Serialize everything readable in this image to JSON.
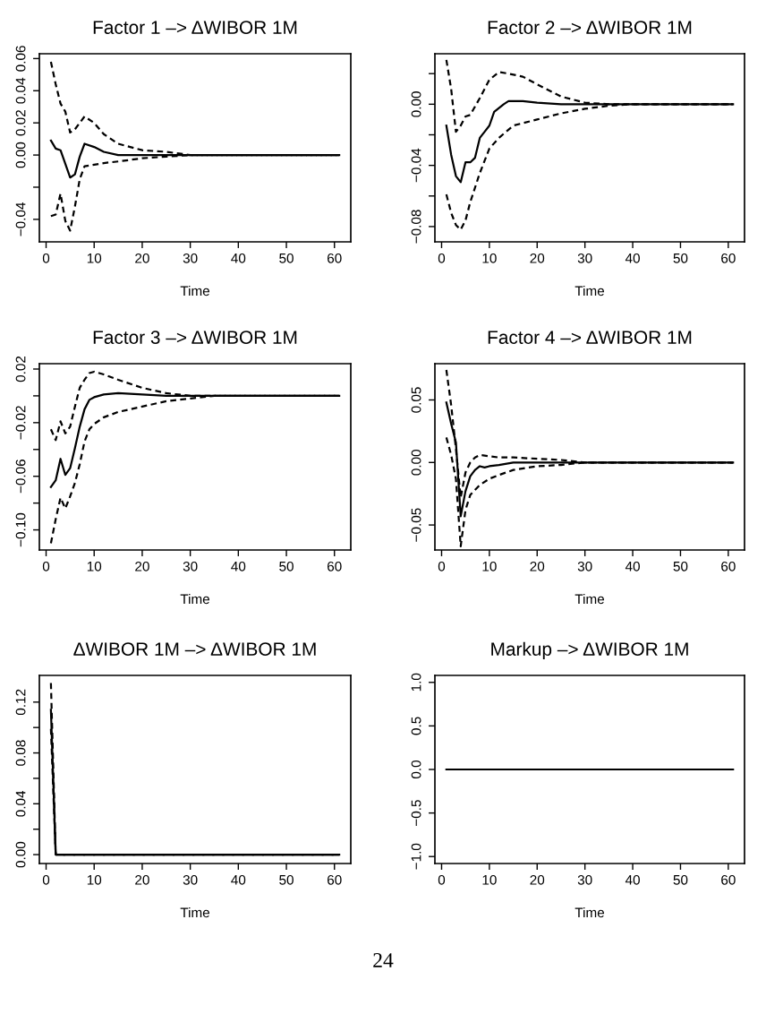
{
  "chart_data": [
    {
      "type": "line",
      "title": "Factor 1 –> ΔWIBOR 1M",
      "xlabel": "Time",
      "xlim": [
        -1.4,
        63.4
      ],
      "xticks": [
        0,
        10,
        20,
        30,
        40,
        50,
        60
      ],
      "ylim": [
        -0.054,
        0.063
      ],
      "yticks": [
        {
          "value": -0.04,
          "label": "−0.04"
        },
        {
          "value": -0.02,
          "label": null
        },
        {
          "value": 0,
          "label": "0.00"
        },
        {
          "value": 0.02,
          "label": "0.02"
        },
        {
          "value": 0.04,
          "label": "0.04"
        },
        {
          "value": 0.06,
          "label": "0.06"
        }
      ],
      "series": [
        {
          "color": "#000000",
          "line_style": "solid",
          "x": [
            1,
            2,
            3,
            5,
            6,
            7,
            8,
            10,
            12,
            15,
            20,
            61
          ],
          "values": [
            0.009,
            0.004,
            0.003,
            -0.014,
            -0.012,
            -0.001,
            0.007,
            0.005,
            0.002,
            0.0,
            0,
            0
          ]
        },
        {
          "color": "#000000",
          "line_style": "dashed",
          "x": [
            1,
            2,
            3,
            4,
            5,
            6,
            8,
            10,
            12,
            15,
            20,
            25,
            30,
            35,
            61
          ],
          "values": [
            0.058,
            0.044,
            0.032,
            0.027,
            0.014,
            0.016,
            0.024,
            0.02,
            0.013,
            0.007,
            0.003,
            0.002,
            0.0,
            0,
            0
          ]
        },
        {
          "color": "#000000",
          "line_style": "dashed",
          "x": [
            1,
            2,
            3,
            4,
            5,
            6,
            7,
            8,
            10,
            12,
            15,
            20,
            25,
            30,
            35,
            61
          ],
          "values": [
            -0.038,
            -0.037,
            -0.024,
            -0.041,
            -0.047,
            -0.032,
            -0.015,
            -0.007,
            -0.006,
            -0.005,
            -0.004,
            -0.002,
            -0.001,
            0.0,
            0,
            0
          ]
        }
      ]
    },
    {
      "type": "line",
      "title": "Factor 2 –> ΔWIBOR 1M",
      "xlabel": "Time",
      "xlim": [
        -1.4,
        63.4
      ],
      "xticks": [
        0,
        10,
        20,
        30,
        40,
        50,
        60
      ],
      "ylim": [
        -0.09,
        0.033
      ],
      "yticks": [
        {
          "value": -0.08,
          "label": "−0.08"
        },
        {
          "value": -0.06,
          "label": null
        },
        {
          "value": -0.04,
          "label": "−0.04"
        },
        {
          "value": -0.02,
          "label": null
        },
        {
          "value": 0,
          "label": "0.00"
        },
        {
          "value": 0.02,
          "label": null
        }
      ],
      "series": [
        {
          "color": "#000000",
          "line_style": "solid",
          "x": [
            1,
            2,
            3,
            4,
            5,
            6,
            7,
            8,
            9,
            10,
            11,
            13,
            14,
            17,
            20,
            25,
            61
          ],
          "values": [
            -0.014,
            -0.033,
            -0.047,
            -0.051,
            -0.038,
            -0.038,
            -0.035,
            -0.022,
            -0.018,
            -0.014,
            -0.005,
            0,
            0.002,
            0.002,
            0.001,
            0,
            0
          ]
        },
        {
          "color": "#000000",
          "line_style": "dashed",
          "x": [
            1,
            2,
            3,
            4,
            5,
            6,
            8,
            10,
            12,
            14,
            17,
            20,
            25,
            30,
            35,
            61
          ],
          "values": [
            0.029,
            0.01,
            -0.018,
            -0.014,
            -0.008,
            -0.007,
            0.004,
            0.016,
            0.021,
            0.02,
            0.018,
            0.013,
            0.005,
            0.001,
            0,
            0
          ]
        },
        {
          "color": "#000000",
          "line_style": "dashed",
          "x": [
            1,
            2,
            3,
            4,
            5,
            6,
            8,
            10,
            12,
            15,
            20,
            25,
            30,
            35,
            40,
            61
          ],
          "values": [
            -0.059,
            -0.071,
            -0.079,
            -0.082,
            -0.076,
            -0.064,
            -0.045,
            -0.029,
            -0.022,
            -0.014,
            -0.01,
            -0.006,
            -0.003,
            -0.001,
            0,
            0
          ]
        }
      ]
    },
    {
      "type": "line",
      "title": "Factor 3 –> ΔWIBOR 1M",
      "xlabel": "Time",
      "xlim": [
        -1.4,
        63.4
      ],
      "xticks": [
        0,
        10,
        20,
        30,
        40,
        50,
        60
      ],
      "ylim": [
        -0.115,
        0.024
      ],
      "yticks": [
        {
          "value": -0.1,
          "label": "−0.10"
        },
        {
          "value": -0.08,
          "label": null
        },
        {
          "value": -0.06,
          "label": "−0.06"
        },
        {
          "value": -0.04,
          "label": null
        },
        {
          "value": -0.02,
          "label": "−0.02"
        },
        {
          "value": 0,
          "label": null
        },
        {
          "value": 0.02,
          "label": "0.02"
        }
      ],
      "series": [
        {
          "color": "#000000",
          "line_style": "solid",
          "x": [
            1,
            2,
            3,
            4,
            5,
            6,
            7,
            8,
            9,
            10,
            12,
            15,
            20,
            25,
            61
          ],
          "values": [
            -0.068,
            -0.063,
            -0.047,
            -0.059,
            -0.054,
            -0.039,
            -0.023,
            -0.01,
            -0.003,
            -0.001,
            0.001,
            0.002,
            0.001,
            0,
            0
          ]
        },
        {
          "color": "#000000",
          "line_style": "dashed",
          "x": [
            1,
            2,
            3,
            4,
            5,
            6,
            7,
            8,
            9,
            10,
            12,
            15,
            20,
            25,
            30,
            35,
            61
          ],
          "values": [
            -0.025,
            -0.033,
            -0.019,
            -0.028,
            -0.023,
            -0.008,
            0.006,
            0.012,
            0.017,
            0.018,
            0.016,
            0.012,
            0.006,
            0.002,
            0.0,
            0,
            0
          ]
        },
        {
          "color": "#000000",
          "line_style": "dashed",
          "x": [
            1,
            2,
            3,
            4,
            5,
            6,
            7,
            8,
            9,
            10,
            12,
            15,
            20,
            25,
            30,
            35,
            40,
            61
          ],
          "values": [
            -0.11,
            -0.092,
            -0.076,
            -0.084,
            -0.075,
            -0.065,
            -0.051,
            -0.034,
            -0.025,
            -0.021,
            -0.016,
            -0.012,
            -0.008,
            -0.004,
            -0.002,
            0.0,
            0,
            0
          ]
        }
      ]
    },
    {
      "type": "line",
      "title": "Factor 4 –> ΔWIBOR 1M",
      "xlabel": "Time",
      "xlim": [
        -1.4,
        63.4
      ],
      "xticks": [
        0,
        10,
        20,
        30,
        40,
        50,
        60
      ],
      "ylim": [
        -0.07,
        0.079
      ],
      "yticks": [
        {
          "value": -0.05,
          "label": "−0.05"
        },
        {
          "value": 0,
          "label": "0.00"
        },
        {
          "value": 0.05,
          "label": "0.05"
        }
      ],
      "series": [
        {
          "color": "#000000",
          "line_style": "solid",
          "x": [
            1,
            2,
            3,
            4,
            5,
            6,
            7,
            8,
            9,
            10,
            12,
            15,
            20,
            61
          ],
          "values": [
            0.048,
            0.031,
            0.016,
            -0.043,
            -0.023,
            -0.011,
            -0.006,
            -0.003,
            -0.004,
            -0.003,
            -0.002,
            0.0,
            0,
            0
          ]
        },
        {
          "color": "#000000",
          "line_style": "dashed",
          "x": [
            1,
            2,
            3,
            4,
            5,
            6,
            7,
            8,
            10,
            12,
            15,
            20,
            25,
            30,
            61
          ],
          "values": [
            0.074,
            0.046,
            0.011,
            -0.028,
            -0.008,
            0.0,
            0.004,
            0.006,
            0.005,
            0.004,
            0.004,
            0.003,
            0.002,
            0,
            0
          ]
        },
        {
          "color": "#000000",
          "line_style": "dashed",
          "x": [
            1,
            2,
            3,
            4,
            5,
            6,
            8,
            10,
            12,
            15,
            20,
            25,
            30,
            61
          ],
          "values": [
            0.02,
            0.006,
            -0.013,
            -0.067,
            -0.038,
            -0.026,
            -0.018,
            -0.013,
            -0.01,
            -0.006,
            -0.003,
            -0.002,
            0,
            0
          ]
        }
      ]
    },
    {
      "type": "line",
      "title": "ΔWIBOR 1M –> ΔWIBOR 1M",
      "xlabel": "Time",
      "xlim": [
        -1.4,
        63.4
      ],
      "xticks": [
        0,
        10,
        20,
        30,
        40,
        50,
        60
      ],
      "ylim": [
        -0.007,
        0.141
      ],
      "yticks": [
        {
          "value": 0,
          "label": "0.00"
        },
        {
          "value": 0.02,
          "label": null
        },
        {
          "value": 0.04,
          "label": "0.04"
        },
        {
          "value": 0.06,
          "label": null
        },
        {
          "value": 0.08,
          "label": "0.08"
        },
        {
          "value": 0.1,
          "label": null
        },
        {
          "value": 0.12,
          "label": "0.12"
        }
      ],
      "series": [
        {
          "color": "#000000",
          "line_style": "solid",
          "x": [
            1,
            2,
            61
          ],
          "values": [
            0.114,
            0,
            0
          ]
        },
        {
          "color": "#000000",
          "line_style": "dashed",
          "x": [
            1,
            2,
            61
          ],
          "values": [
            0.135,
            0,
            0
          ]
        },
        {
          "color": "#000000",
          "line_style": "dashed",
          "x": [
            1,
            2,
            61
          ],
          "values": [
            0.099,
            0,
            0
          ]
        }
      ]
    },
    {
      "type": "line",
      "title": "Markup –> ΔWIBOR 1M",
      "xlabel": "Time",
      "xlim": [
        -1.4,
        63.4
      ],
      "xticks": [
        0,
        10,
        20,
        30,
        40,
        50,
        60
      ],
      "ylim": [
        -1.08,
        1.08
      ],
      "yticks": [
        {
          "value": -1,
          "label": "−1.0"
        },
        {
          "value": -0.5,
          "label": "−0.5"
        },
        {
          "value": 0,
          "label": "0.0"
        },
        {
          "value": 0.5,
          "label": "0.5"
        },
        {
          "value": 1,
          "label": "1.0"
        }
      ],
      "annotations": [
        "24"
      ],
      "series": [
        {
          "color": "#000000",
          "line_style": "solid",
          "x": [
            1,
            61
          ],
          "values": [
            0,
            0
          ]
        }
      ]
    }
  ]
}
